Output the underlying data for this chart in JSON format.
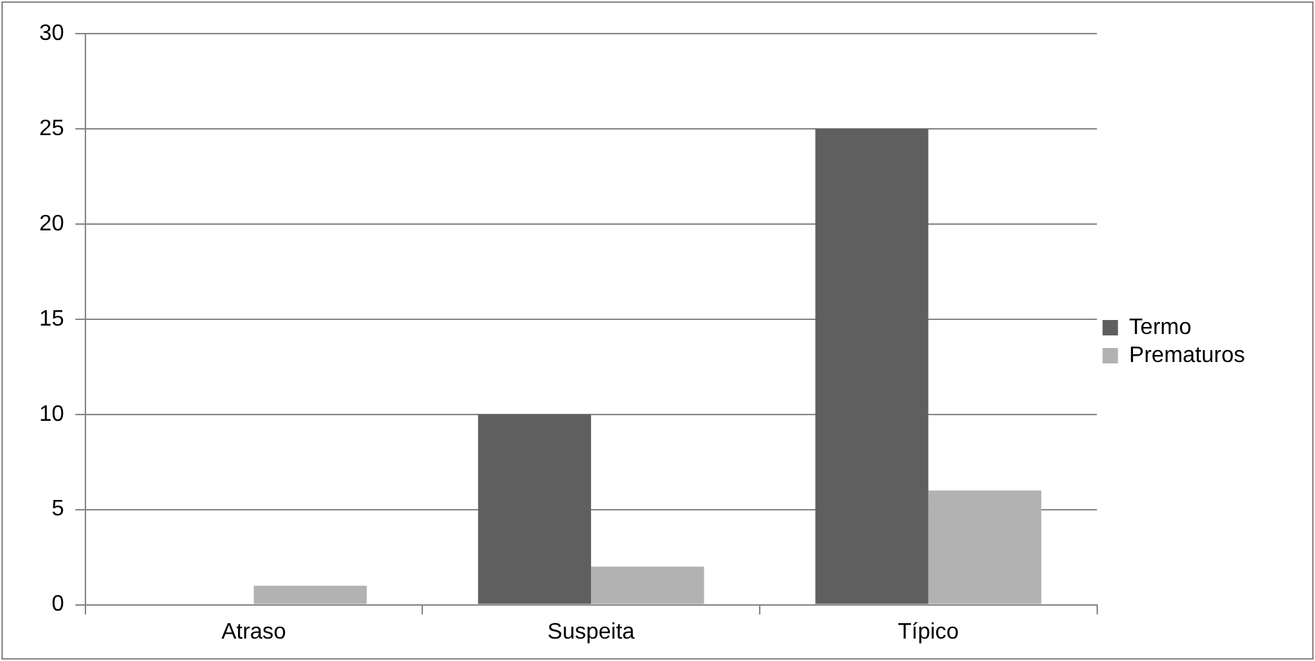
{
  "chart_data": {
    "type": "bar",
    "categories": [
      "Atraso",
      "Suspeita",
      "Típico"
    ],
    "series": [
      {
        "name": "Termo",
        "color": "#5f5f5f",
        "values": [
          0,
          10,
          25
        ]
      },
      {
        "name": "Prematuros",
        "color": "#b2b2b2",
        "values": [
          1,
          2,
          6
        ]
      }
    ],
    "ylim": [
      0,
      30
    ],
    "yticks": [
      0,
      5,
      10,
      15,
      20,
      25,
      30
    ],
    "grid": "y",
    "legend": "right"
  }
}
